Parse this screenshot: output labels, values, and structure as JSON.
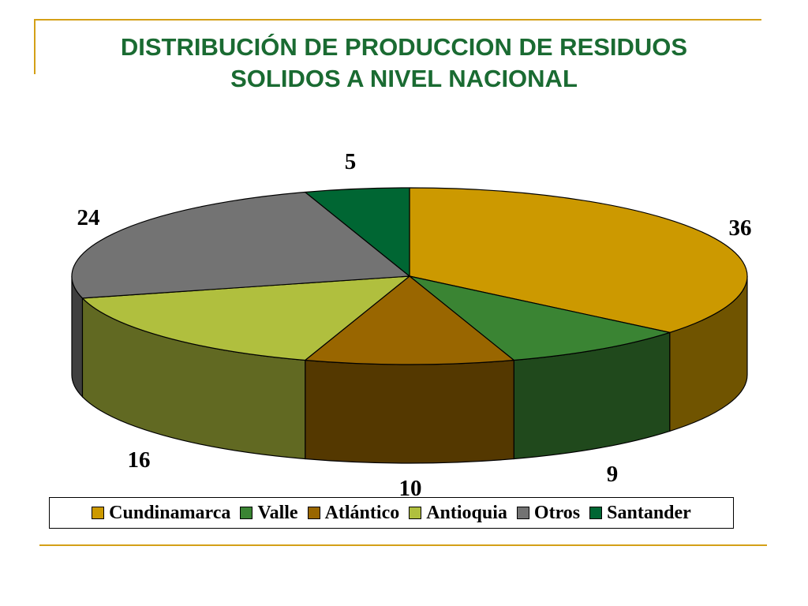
{
  "title_lines": [
    "DISTRIBUCIÓN DE PRODUCCION DE RESIDUOS",
    "SOLIDOS A NIVEL NACIONAL"
  ],
  "accent_color": "#d4a017",
  "title_color": "#1a6b32",
  "chart_data": {
    "type": "pie",
    "style": "3d",
    "categories": [
      "Cundinamarca",
      "Valle",
      "Atlántico",
      "Antioquia",
      "Otros",
      "Santander"
    ],
    "values": [
      36,
      9,
      10,
      16,
      24,
      5
    ],
    "colors": [
      "#cc9900",
      "#3a8433",
      "#996600",
      "#b0bf3e",
      "#737373",
      "#006633"
    ],
    "data_labels": [
      "36",
      "9",
      "10",
      "16",
      "24",
      "5"
    ],
    "legend_position": "bottom"
  }
}
